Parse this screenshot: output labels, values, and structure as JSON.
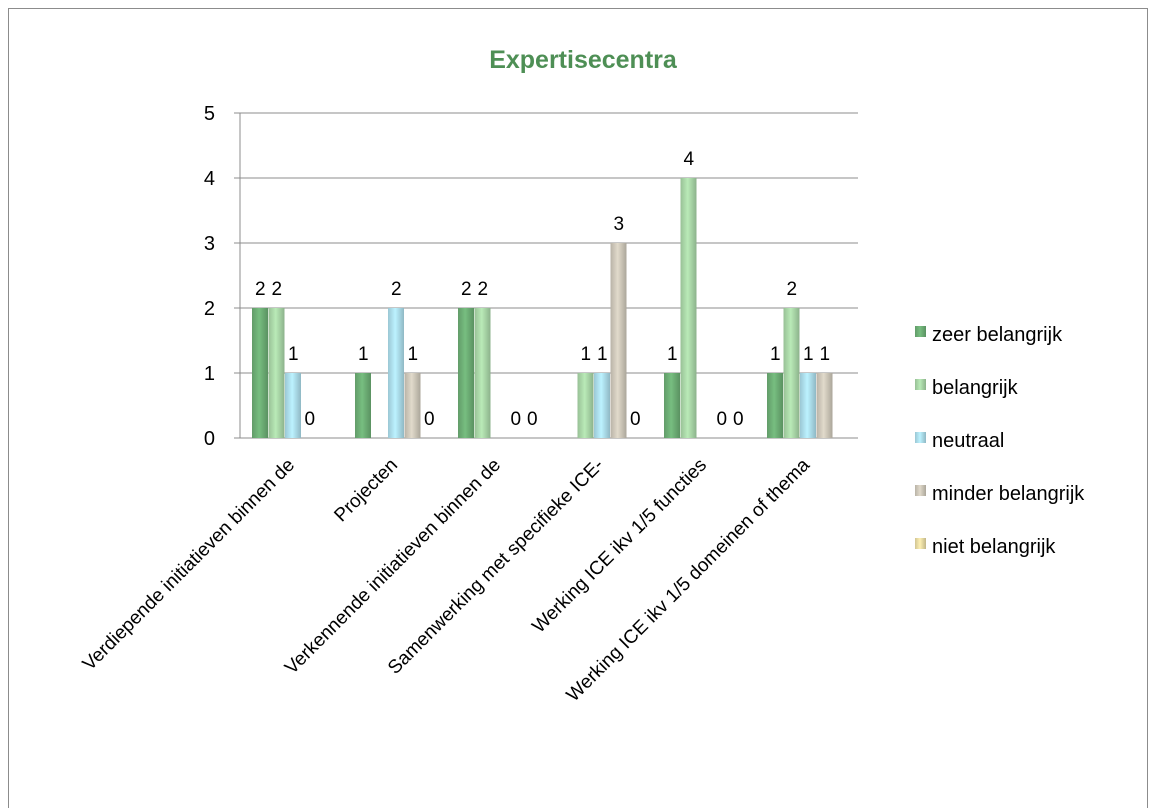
{
  "chart_data": {
    "type": "bar",
    "title": "Expertisecentra",
    "xlabel": "",
    "ylabel": "",
    "ylim": [
      0,
      5
    ],
    "yticks": [
      "0",
      "1",
      "2",
      "3",
      "4",
      "5"
    ],
    "grid": true,
    "legend_position": "right",
    "categories": [
      "Verdiepende initiatieven binnen de",
      "Projecten",
      "Verkennende initiatieven binnen de",
      "Samenwerking met specifieke ICE-",
      "Werking ICE ikv 1/5 functies",
      "Werking ICE ikv 1/5 domeinen of thema"
    ],
    "series": [
      {
        "name": "zeer belangrijk",
        "values": [
          2,
          1,
          2,
          null,
          1,
          1
        ],
        "labels": [
          "2",
          "1",
          "2",
          "",
          "1",
          "1"
        ],
        "color": "#6aaa72"
      },
      {
        "name": "belangrijk",
        "values": [
          2,
          null,
          2,
          1,
          4,
          2
        ],
        "labels": [
          "2",
          "",
          "2",
          "1",
          "4",
          "2"
        ],
        "color": "#a5d1a3"
      },
      {
        "name": "neutraal",
        "values": [
          1,
          2,
          null,
          1,
          null,
          1
        ],
        "labels": [
          "1",
          "2",
          "",
          "1",
          "",
          "1"
        ],
        "color": "#a8d8e6"
      },
      {
        "name": "minder belangrijk",
        "values": [
          0,
          1,
          0,
          3,
          0,
          1
        ],
        "labels": [
          "0",
          "1",
          "0",
          "3",
          "0",
          "1"
        ],
        "color": "#c9c3b5"
      },
      {
        "name": "niet belangrijk",
        "values": [
          null,
          0,
          0,
          0,
          0,
          null
        ],
        "labels": [
          "",
          "0",
          "0",
          "0",
          "0",
          ""
        ],
        "color": "#e3d6a0"
      }
    ]
  }
}
